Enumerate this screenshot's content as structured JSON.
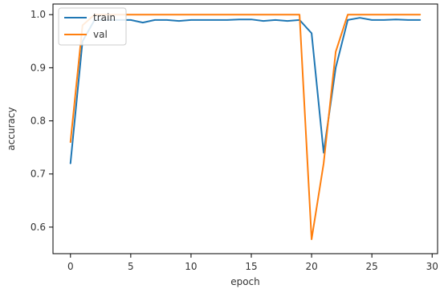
{
  "chart_data": {
    "type": "line",
    "title": "",
    "xlabel": "epoch",
    "ylabel": "accuracy",
    "xlim": [
      -1.45,
      30.45
    ],
    "ylim": [
      0.55,
      1.02
    ],
    "xticks": [
      0,
      5,
      10,
      15,
      20,
      25,
      30
    ],
    "yticks": [
      0.6,
      0.7,
      0.8,
      0.9,
      1.0
    ],
    "ytick_labels": [
      "0.6",
      "0.7",
      "0.8",
      "0.9",
      "1.0"
    ],
    "grid": false,
    "legend_position": "upper-left",
    "x": [
      0,
      1,
      2,
      3,
      4,
      5,
      6,
      7,
      8,
      9,
      10,
      11,
      12,
      13,
      14,
      15,
      16,
      17,
      18,
      19,
      20,
      21,
      22,
      23,
      24,
      25,
      26,
      27,
      28,
      29
    ],
    "series": [
      {
        "name": "train",
        "color": "#1f77b4",
        "values": [
          0.72,
          0.95,
          0.99,
          0.99,
          0.99,
          0.99,
          0.985,
          0.99,
          0.99,
          0.988,
          0.99,
          0.99,
          0.99,
          0.99,
          0.991,
          0.991,
          0.988,
          0.99,
          0.988,
          0.99,
          0.965,
          0.74,
          0.9,
          0.99,
          0.994,
          0.99,
          0.99,
          0.991,
          0.99,
          0.99
        ]
      },
      {
        "name": "val",
        "color": "#ff7f0e",
        "values": [
          0.76,
          0.98,
          1.0,
          1.0,
          1.0,
          1.0,
          1.0,
          1.0,
          1.0,
          1.0,
          1.0,
          1.0,
          1.0,
          1.0,
          1.0,
          1.0,
          1.0,
          1.0,
          1.0,
          1.0,
          0.577,
          0.72,
          0.93,
          1.0,
          1.0,
          1.0,
          1.0,
          1.0,
          1.0,
          1.0
        ]
      }
    ]
  }
}
